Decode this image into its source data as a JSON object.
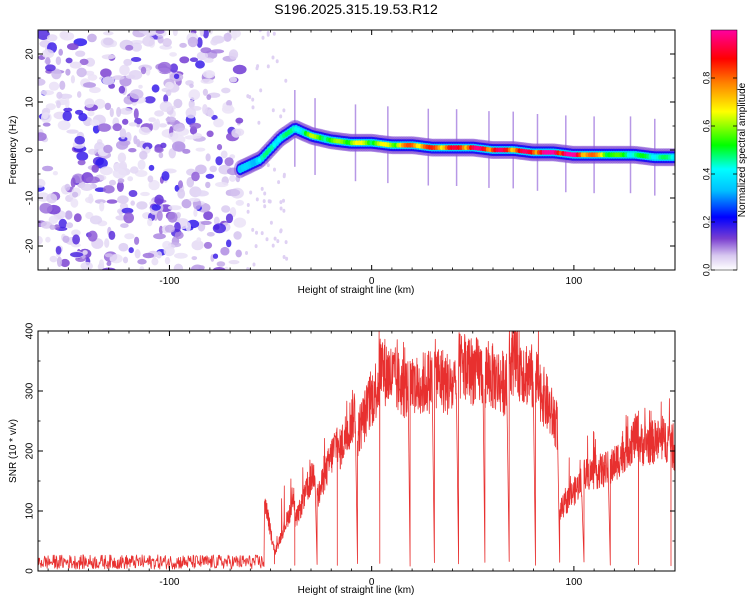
{
  "title": "S196.2025.315.19.53.R12",
  "chart_data": [
    {
      "type": "heatmap",
      "name": "spectrogram",
      "xlabel": "Height of straight line (km)",
      "ylabel": "Frequency (Hz)",
      "xlim": [
        -165,
        150
      ],
      "ylim": [
        -25,
        25
      ],
      "xticks": [
        -100,
        0,
        100
      ],
      "yticks": [
        -20,
        -10,
        0,
        10,
        20
      ],
      "colorbar": {
        "label": "Normalized spectral amplitude",
        "range": [
          0,
          1
        ],
        "ticks": [
          0,
          0.2,
          0.4,
          0.6,
          0.8
        ],
        "tick_labels": [
          "0.0",
          "0.2",
          "0.4",
          "0.6",
          "0.8"
        ],
        "colors": [
          "#ffffff",
          "#7a3fd0",
          "#0000ff",
          "#00ffff",
          "#00ff00",
          "#ffff00",
          "#ff8000",
          "#ff0000",
          "#ff00a0"
        ]
      },
      "noise_region_x": [
        -165,
        -65
      ],
      "ridge": {
        "x": [
          -65,
          -55,
          -45,
          -38,
          -30,
          -20,
          -10,
          0,
          10,
          20,
          30,
          40,
          50,
          60,
          70,
          80,
          90,
          100,
          110,
          120,
          130,
          140,
          150
        ],
        "freq": [
          -4,
          -2,
          2.5,
          4.5,
          3,
          2,
          1.5,
          1.5,
          1,
          1,
          0.5,
          0.5,
          0.5,
          0,
          0,
          -0.5,
          -0.5,
          -1,
          -1,
          -1,
          -1,
          -1.5,
          -1.5
        ],
        "amplitude": [
          0.3,
          0.4,
          0.45,
          0.4,
          0.55,
          0.5,
          0.6,
          0.55,
          0.6,
          0.75,
          0.75,
          0.8,
          0.85,
          0.85,
          0.8,
          0.85,
          0.95,
          0.9,
          0.7,
          0.5,
          0.45,
          0.45,
          0.4
        ]
      }
    },
    {
      "type": "line",
      "name": "snr",
      "color": "#e8302f",
      "xlabel": "Height of straight line (km)",
      "ylabel": "SNR (10 * v/v)",
      "xlim": [
        -165,
        150
      ],
      "ylim": [
        0,
        400
      ],
      "xticks": [
        -100,
        0,
        100
      ],
      "yticks": [
        0,
        100,
        200,
        300,
        400
      ],
      "baseline_region": {
        "x": [
          -165,
          -53
        ],
        "mean": 15,
        "spread": 12
      },
      "segments": [
        {
          "x0": -53,
          "x1": -48,
          "y0": 120,
          "y1": 30,
          "dip_at": -48
        },
        {
          "x0": -48,
          "x1": -38,
          "y0": 30,
          "y1": 120,
          "dip_at": -38
        },
        {
          "x0": -38,
          "x1": -28,
          "y0": 80,
          "y1": 170,
          "dip_at": -27
        },
        {
          "x0": -27,
          "x1": -17,
          "y0": 120,
          "y1": 220,
          "dip_at": -17
        },
        {
          "x0": -17,
          "x1": -8,
          "y0": 190,
          "y1": 270,
          "dip_at": -7
        },
        {
          "x0": -7,
          "x1": 4,
          "y0": 230,
          "y1": 320,
          "dip_at": 4
        },
        {
          "x0": 4,
          "x1": 18,
          "y0": 340,
          "y1": 300,
          "dip_at": 19
        },
        {
          "x0": 19,
          "x1": 30,
          "y0": 300,
          "y1": 320,
          "dip_at": 31
        },
        {
          "x0": 31,
          "x1": 42,
          "y0": 330,
          "y1": 300,
          "dip_at": 43
        },
        {
          "x0": 43,
          "x1": 55,
          "y0": 340,
          "y1": 330,
          "dip_at": 56
        },
        {
          "x0": 56,
          "x1": 67,
          "y0": 330,
          "y1": 310,
          "dip_at": 68
        },
        {
          "x0": 68,
          "x1": 80,
          "y0": 360,
          "y1": 320,
          "dip_at": 81
        },
        {
          "x0": 81,
          "x1": 92,
          "y0": 320,
          "y1": 240,
          "dip_at": 93
        },
        {
          "x0": 93,
          "x1": 104,
          "y0": 100,
          "y1": 150,
          "dip_at": 105
        },
        {
          "x0": 105,
          "x1": 117,
          "y0": 160,
          "y1": 170,
          "dip_at": 118
        },
        {
          "x0": 118,
          "x1": 132,
          "y0": 170,
          "y1": 230,
          "dip_at": 132
        },
        {
          "x0": 132,
          "x1": 148,
          "y0": 210,
          "y1": 220,
          "dip_at": 148
        },
        {
          "x0": 148,
          "x1": 150,
          "y0": 210,
          "y1": 200,
          "dip_at": null
        }
      ]
    }
  ]
}
